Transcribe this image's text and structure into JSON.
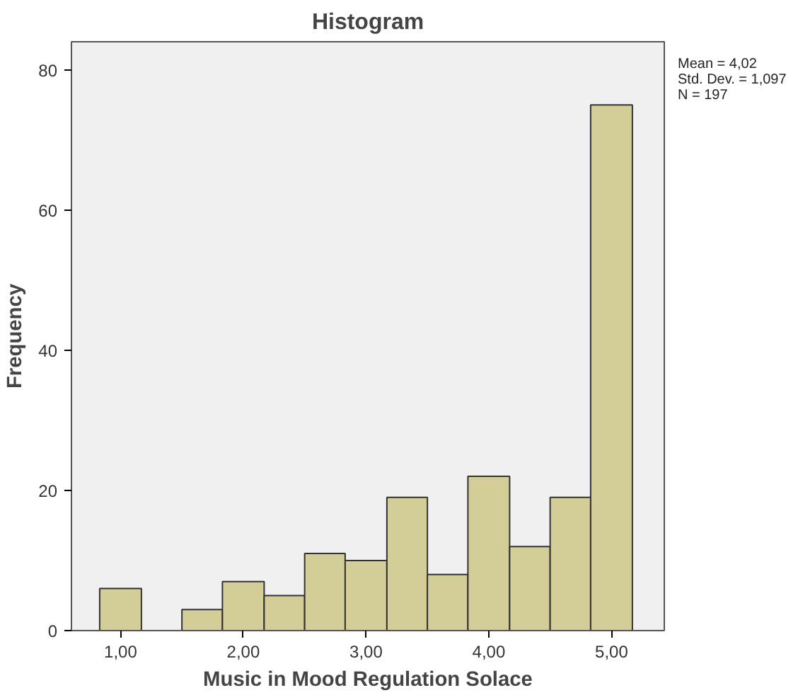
{
  "chart_data": {
    "type": "histogram",
    "title": "Histogram",
    "xlabel": "Music in Mood Regulation Solace",
    "ylabel": "Frequency",
    "bins": [
      0.83,
      1.17,
      1.5,
      1.83,
      2.17,
      2.5,
      2.83,
      3.17,
      3.5,
      3.83,
      4.17,
      4.5,
      4.83,
      5.17
    ],
    "values": [
      6,
      0,
      3,
      7,
      5,
      11,
      10,
      19,
      8,
      22,
      12,
      19,
      75
    ],
    "color": "#d3ce97",
    "xlim": [
      0.6,
      5.43
    ],
    "ylim": [
      0,
      84
    ],
    "xticks": [
      {
        "value": 1,
        "label": "1,00"
      },
      {
        "value": 2,
        "label": "2,00"
      },
      {
        "value": 3,
        "label": "3,00"
      },
      {
        "value": 4,
        "label": "4,00"
      },
      {
        "value": 5,
        "label": "5,00"
      }
    ],
    "yticks": [
      0,
      20,
      40,
      60,
      80
    ],
    "grid": false,
    "legend": false,
    "annotations": [
      "Mean = 4,02",
      "Std. Dev. = 1,097",
      "N = 197"
    ]
  }
}
